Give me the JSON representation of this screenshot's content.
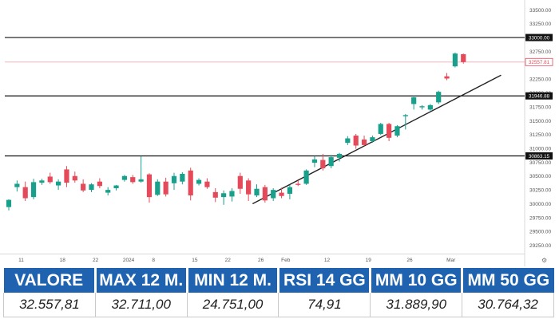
{
  "chart_data": {
    "type": "candlestick",
    "x_ticks": [
      "11",
      "18",
      "22",
      "2024",
      "8",
      "15",
      "22",
      "26",
      "Feb",
      "12",
      "19",
      "26",
      "Mar"
    ],
    "y_ticks": [
      "33500.00",
      "33250.00",
      "32750.00",
      "32250.00",
      "32000.00",
      "31750.00",
      "31500.00",
      "31250.00",
      "31000.00",
      "30750.00",
      "30500.00",
      "30250.00",
      "30000.00",
      "29750.00",
      "29500.00",
      "29250.00"
    ],
    "ylim": [
      29100,
      33620
    ],
    "up_color": "#19a08c",
    "down_color": "#e44a5a",
    "candles": [
      {
        "o": 29940,
        "h": 30080,
        "l": 29880,
        "c": 30070
      },
      {
        "o": 30300,
        "h": 30420,
        "l": 30220,
        "c": 30360
      },
      {
        "o": 30300,
        "h": 30400,
        "l": 30050,
        "c": 30100
      },
      {
        "o": 30120,
        "h": 30450,
        "l": 30080,
        "c": 30390
      },
      {
        "o": 30380,
        "h": 30450,
        "l": 30340,
        "c": 30420
      },
      {
        "o": 30490,
        "h": 30560,
        "l": 30360,
        "c": 30390
      },
      {
        "o": 30330,
        "h": 30440,
        "l": 30250,
        "c": 30400
      },
      {
        "o": 30620,
        "h": 30680,
        "l": 30300,
        "c": 30380
      },
      {
        "o": 30500,
        "h": 30580,
        "l": 30380,
        "c": 30420
      },
      {
        "o": 30360,
        "h": 30440,
        "l": 30210,
        "c": 30240
      },
      {
        "o": 30250,
        "h": 30370,
        "l": 30210,
        "c": 30350
      },
      {
        "o": 30400,
        "h": 30460,
        "l": 30280,
        "c": 30320
      },
      {
        "o": 30200,
        "h": 30300,
        "l": 30150,
        "c": 30250
      },
      {
        "o": 30280,
        "h": 30340,
        "l": 30240,
        "c": 30330
      },
      {
        "o": 30430,
        "h": 30520,
        "l": 30400,
        "c": 30500
      },
      {
        "o": 30480,
        "h": 30520,
        "l": 30360,
        "c": 30390
      },
      {
        "o": 30400,
        "h": 30860,
        "l": 30380,
        "c": 30440
      },
      {
        "o": 30530,
        "h": 30550,
        "l": 30020,
        "c": 30120
      },
      {
        "o": 30160,
        "h": 30440,
        "l": 30140,
        "c": 30400
      },
      {
        "o": 30400,
        "h": 30470,
        "l": 30130,
        "c": 30170
      },
      {
        "o": 30370,
        "h": 30560,
        "l": 30250,
        "c": 30500
      },
      {
        "o": 30400,
        "h": 30570,
        "l": 30350,
        "c": 30540
      },
      {
        "o": 30600,
        "h": 30650,
        "l": 30060,
        "c": 30150
      },
      {
        "o": 30360,
        "h": 30460,
        "l": 30330,
        "c": 30430
      },
      {
        "o": 30400,
        "h": 30460,
        "l": 30270,
        "c": 30300
      },
      {
        "o": 30210,
        "h": 30280,
        "l": 30030,
        "c": 30110
      },
      {
        "o": 30120,
        "h": 30240,
        "l": 29980,
        "c": 30190
      },
      {
        "o": 30130,
        "h": 30280,
        "l": 30040,
        "c": 30230
      },
      {
        "o": 30500,
        "h": 30560,
        "l": 30180,
        "c": 30270
      },
      {
        "o": 30420,
        "h": 30460,
        "l": 30050,
        "c": 30170
      },
      {
        "o": 30150,
        "h": 30350,
        "l": 30120,
        "c": 30270
      },
      {
        "o": 30300,
        "h": 30340,
        "l": 30020,
        "c": 30060
      },
      {
        "o": 30100,
        "h": 30280,
        "l": 30050,
        "c": 30250
      },
      {
        "o": 30200,
        "h": 30290,
        "l": 30100,
        "c": 30140
      },
      {
        "o": 30180,
        "h": 30340,
        "l": 30080,
        "c": 30300
      },
      {
        "o": 30360,
        "h": 30420,
        "l": 30320,
        "c": 30340
      },
      {
        "o": 30360,
        "h": 30620,
        "l": 30340,
        "c": 30600
      },
      {
        "o": 30740,
        "h": 30860,
        "l": 30660,
        "c": 30800
      },
      {
        "o": 30790,
        "h": 30900,
        "l": 30600,
        "c": 30640
      },
      {
        "o": 30680,
        "h": 30880,
        "l": 30640,
        "c": 30840
      },
      {
        "o": 30830,
        "h": 30920,
        "l": 30760,
        "c": 30900
      },
      {
        "o": 31100,
        "h": 31220,
        "l": 31060,
        "c": 31180
      },
      {
        "o": 31230,
        "h": 31260,
        "l": 30990,
        "c": 31050
      },
      {
        "o": 31160,
        "h": 31230,
        "l": 31040,
        "c": 31060
      },
      {
        "o": 31130,
        "h": 31230,
        "l": 31100,
        "c": 31200
      },
      {
        "o": 31260,
        "h": 31460,
        "l": 31240,
        "c": 31440
      },
      {
        "o": 31440,
        "h": 31460,
        "l": 31130,
        "c": 31190
      },
      {
        "o": 31230,
        "h": 31420,
        "l": 31200,
        "c": 31400
      },
      {
        "o": 31580,
        "h": 31620,
        "l": 31340,
        "c": 31600
      },
      {
        "o": 31800,
        "h": 31960,
        "l": 31700,
        "c": 31920
      },
      {
        "o": 31740,
        "h": 31780,
        "l": 31700,
        "c": 31760
      },
      {
        "o": 31700,
        "h": 31800,
        "l": 31680,
        "c": 31780
      },
      {
        "o": 31830,
        "h": 32040,
        "l": 31800,
        "c": 32020
      },
      {
        "o": 32300,
        "h": 32360,
        "l": 32230,
        "c": 32260
      },
      {
        "o": 32480,
        "h": 32730,
        "l": 32460,
        "c": 32711
      },
      {
        "o": 32700,
        "h": 32710,
        "l": 32530,
        "c": 32557.81
      }
    ],
    "x_tick_positions": [
      1.5,
      6.5,
      10.5,
      14.5,
      17.5,
      22.5,
      26.5,
      30.5,
      33.5,
      38.5,
      43.5,
      48.5,
      53.5
    ],
    "horizontal_levels": [
      {
        "value": 33000,
        "label": "33000.00",
        "color": "#111111"
      },
      {
        "value": 31946.88,
        "label": "31946.88",
        "color": "#111111"
      },
      {
        "value": 30863.15,
        "label": "30863.15",
        "color": "#111111"
      }
    ],
    "last_price": {
      "value": 32557.81,
      "label": "32557.81",
      "color": "#e44a5a"
    },
    "trendline": {
      "from": {
        "index": 29.5,
        "value": 30000
      },
      "to": {
        "index": 52.8,
        "value": 32120
      }
    }
  },
  "stats": {
    "headers": [
      "VALORE",
      "MAX 12 M.",
      "MIN 12 M.",
      "RSI 14 GG",
      "MM 10 GG",
      "MM 50 GG"
    ],
    "values": [
      "32.557,81",
      "32.711,00",
      "24.751,00",
      "74,91",
      "31.889,90",
      "30.764,32"
    ]
  }
}
